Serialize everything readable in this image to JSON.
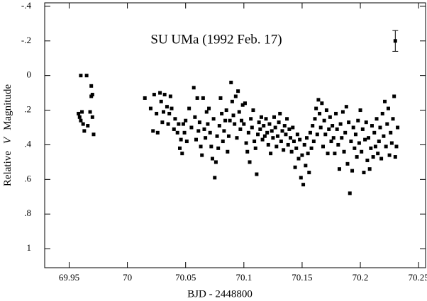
{
  "chart_data": {
    "type": "scatter",
    "title": "SU UMa (1992 Feb. 17)",
    "x_label": "BJD - 2448800",
    "y_label": [
      "Relative",
      "V",
      "Magnitude"
    ],
    "xlim": [
      69.929,
      70.256
    ],
    "ylim": [
      1.11,
      -0.42
    ],
    "xticks": [
      69.95,
      70,
      70.05,
      70.1,
      70.15,
      70.2,
      70.25
    ],
    "yticks": [
      {
        "value": -0.4,
        "label": "-.4"
      },
      {
        "value": -0.2,
        "label": "-.2"
      },
      0,
      {
        "value": 0.2,
        "label": ".2"
      },
      {
        "value": 0.4,
        "label": ".4"
      },
      {
        "value": 0.6,
        "label": ".6"
      },
      {
        "value": 0.8,
        "label": ".8"
      },
      1
    ],
    "color": "#000000",
    "x": [
      69.958,
      69.959,
      69.96,
      69.961,
      69.962,
      69.963,
      69.965,
      69.966,
      69.968,
      69.969,
      69.969,
      69.97,
      69.97,
      69.971,
      69.96,
      70.015,
      70.02,
      70.022,
      70.023,
      70.025,
      70.026,
      70.028,
      70.029,
      70.03,
      70.031,
      70.032,
      70.034,
      70.035,
      70.036,
      70.037,
      70.038,
      70.04,
      70.041,
      70.043,
      70.044,
      70.045,
      70.046,
      70.047,
      70.048,
      70.049,
      70.05,
      70.051,
      70.053,
      70.055,
      70.057,
      70.058,
      70.059,
      70.06,
      70.061,
      70.062,
      70.063,
      70.064,
      70.065,
      70.066,
      70.067,
      70.068,
      70.069,
      70.07,
      70.071,
      70.072,
      70.073,
      70.074,
      70.075,
      70.076,
      70.077,
      70.078,
      70.079,
      70.08,
      70.081,
      70.082,
      70.083,
      70.084,
      70.085,
      70.086,
      70.087,
      70.088,
      70.089,
      70.09,
      70.091,
      70.092,
      70.093,
      70.094,
      70.095,
      70.096,
      70.097,
      70.098,
      70.099,
      70.1,
      70.101,
      70.102,
      70.103,
      70.104,
      70.105,
      70.106,
      70.107,
      70.108,
      70.109,
      70.11,
      70.111,
      70.112,
      70.113,
      70.114,
      70.115,
      70.116,
      70.117,
      70.118,
      70.119,
      70.12,
      70.121,
      70.122,
      70.123,
      70.124,
      70.125,
      70.126,
      70.127,
      70.128,
      70.129,
      70.13,
      70.131,
      70.132,
      70.133,
      70.134,
      70.135,
      70.136,
      70.137,
      70.138,
      70.139,
      70.14,
      70.141,
      70.142,
      70.143,
      70.144,
      70.145,
      70.146,
      70.147,
      70.148,
      70.149,
      70.15,
      70.151,
      70.152,
      70.153,
      70.154,
      70.155,
      70.156,
      70.157,
      70.158,
      70.159,
      70.16,
      70.161,
      70.162,
      70.163,
      70.164,
      70.165,
      70.166,
      70.167,
      70.168,
      70.169,
      70.17,
      70.171,
      70.172,
      70.173,
      70.174,
      70.175,
      70.176,
      70.177,
      70.178,
      70.179,
      70.18,
      70.181,
      70.182,
      70.183,
      70.184,
      70.185,
      70.186,
      70.187,
      70.188,
      70.189,
      70.19,
      70.191,
      70.192,
      70.193,
      70.194,
      70.195,
      70.196,
      70.197,
      70.198,
      70.199,
      70.2,
      70.201,
      70.202,
      70.203,
      70.204,
      70.205,
      70.206,
      70.207,
      70.208,
      70.209,
      70.21,
      70.211,
      70.212,
      70.213,
      70.214,
      70.215,
      70.216,
      70.217,
      70.218,
      70.219,
      70.22,
      70.221,
      70.222,
      70.223,
      70.224,
      70.225,
      70.226,
      70.227,
      70.228,
      70.229,
      70.23,
      70.231,
      70.232
    ],
    "y": [
      0.22,
      0.24,
      0.0,
      0.21,
      0.28,
      0.32,
      0.0,
      0.29,
      0.21,
      0.12,
      0.06,
      0.11,
      0.24,
      0.34,
      0.26,
      0.13,
      0.19,
      0.32,
      0.11,
      0.22,
      0.33,
      0.1,
      0.15,
      0.27,
      0.21,
      0.11,
      0.18,
      0.28,
      0.22,
      0.12,
      0.19,
      0.31,
      0.25,
      0.33,
      0.28,
      0.42,
      0.37,
      0.45,
      0.28,
      0.33,
      0.26,
      0.38,
      0.19,
      0.3,
      0.07,
      0.24,
      0.37,
      0.13,
      0.32,
      0.27,
      0.41,
      0.46,
      0.13,
      0.31,
      0.36,
      0.21,
      0.28,
      0.19,
      0.33,
      0.41,
      0.48,
      0.25,
      0.59,
      0.5,
      0.35,
      0.42,
      0.29,
      0.13,
      0.22,
      0.38,
      0.32,
      0.26,
      0.2,
      0.44,
      0.35,
      0.26,
      0.04,
      0.15,
      0.23,
      0.28,
      0.12,
      0.36,
      0.09,
      0.21,
      0.31,
      0.26,
      0.17,
      0.28,
      0.16,
      0.39,
      0.44,
      0.33,
      0.5,
      0.25,
      0.3,
      0.2,
      0.38,
      0.42,
      0.57,
      0.34,
      0.27,
      0.31,
      0.24,
      0.37,
      0.29,
      0.35,
      0.25,
      0.33,
      0.4,
      0.28,
      0.45,
      0.32,
      0.36,
      0.24,
      0.3,
      0.41,
      0.35,
      0.27,
      0.22,
      0.38,
      0.32,
      0.43,
      0.29,
      0.34,
      0.25,
      0.4,
      0.31,
      0.36,
      0.44,
      0.3,
      0.38,
      0.53,
      0.42,
      0.34,
      0.48,
      0.37,
      0.59,
      0.46,
      0.63,
      0.4,
      0.52,
      0.36,
      0.45,
      0.56,
      0.33,
      0.42,
      0.29,
      0.38,
      0.25,
      0.19,
      0.34,
      0.14,
      0.22,
      0.3,
      0.16,
      0.41,
      0.26,
      0.34,
      0.2,
      0.45,
      0.31,
      0.24,
      0.38,
      0.29,
      0.36,
      0.45,
      0.22,
      0.31,
      0.4,
      0.54,
      0.28,
      0.36,
      0.21,
      0.44,
      0.33,
      0.18,
      0.51,
      0.27,
      0.68,
      0.38,
      0.55,
      0.3,
      0.42,
      0.34,
      0.47,
      0.26,
      0.39,
      0.2,
      0.44,
      0.31,
      0.56,
      0.37,
      0.27,
      0.49,
      0.36,
      0.54,
      0.42,
      0.29,
      0.47,
      0.33,
      0.41,
      0.25,
      0.45,
      0.38,
      0.3,
      0.48,
      0.22,
      0.35,
      0.15,
      0.41,
      0.28,
      0.19,
      0.46,
      0.33,
      0.39,
      0.25,
      0.12,
      0.47,
      0.41,
      0.3
    ],
    "error_bar": {
      "x": 70.23,
      "y": -0.2,
      "error": 0.06
    }
  }
}
